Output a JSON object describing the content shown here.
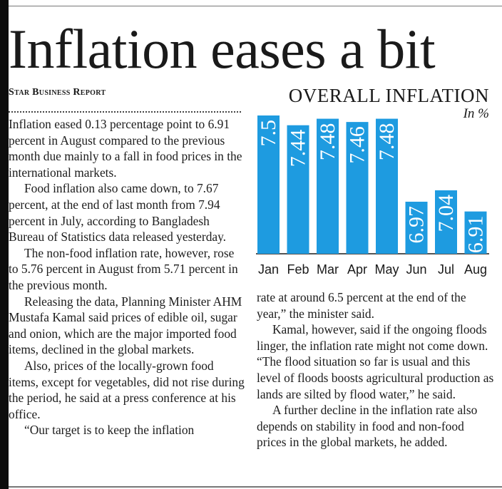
{
  "headline": "Inflation eases a bit",
  "byline": "Star Business Report",
  "article": {
    "column1": [
      "Inflation eased 0.13 percentage point to 6.91 percent in August compared to the previous month due mainly to a fall in food prices in the international markets.",
      "Food inflation also came down, to 7.67 percent, at the end of last month from 7.94 percent in July, according to Bangladesh Bureau of Statistics data released yesterday.",
      "The non-food inflation rate, however, rose to 5.76 percent in August from 5.71 percent in the previous month.",
      "Releasing the data, Planning Minister AHM Mustafa Kamal said prices of edible oil, sugar and onion, which are the major imported food items, declined in the global markets.",
      "Also, prices of the locally-grown food items, except for vegetables, did not rise during the period, he said at a press conference at his office.",
      "“Our target is to keep the inflation"
    ],
    "column2": [
      "rate at around 6.5 percent at the end of the year,” the minister said.",
      "Kamal, however, said if the ongoing floods linger, the inflation rate might not come down. “The flood situation so far is usual and this level of floods boosts agricultural production as lands are silted by flood water,” he said.",
      "A further decline in the inflation rate also depends on stability in food and non-food prices in the global markets, he added."
    ]
  },
  "chart_data": {
    "type": "bar",
    "title": "OVERALL INFLATION",
    "unit": "In %",
    "categories": [
      "Jan",
      "Feb",
      "Mar",
      "Apr",
      "May",
      "Jun",
      "Jul",
      "Aug"
    ],
    "values": [
      7.5,
      7.44,
      7.48,
      7.46,
      7.48,
      6.97,
      7.04,
      6.91
    ],
    "value_labels": [
      "7.5",
      "7.44",
      "7.48",
      "7.46",
      "7.48",
      "6.97",
      "7.04",
      "6.91"
    ],
    "ylim": [
      6.65,
      7.5
    ],
    "bar_color": "#1e9be0",
    "grid": false,
    "legend": "none"
  }
}
